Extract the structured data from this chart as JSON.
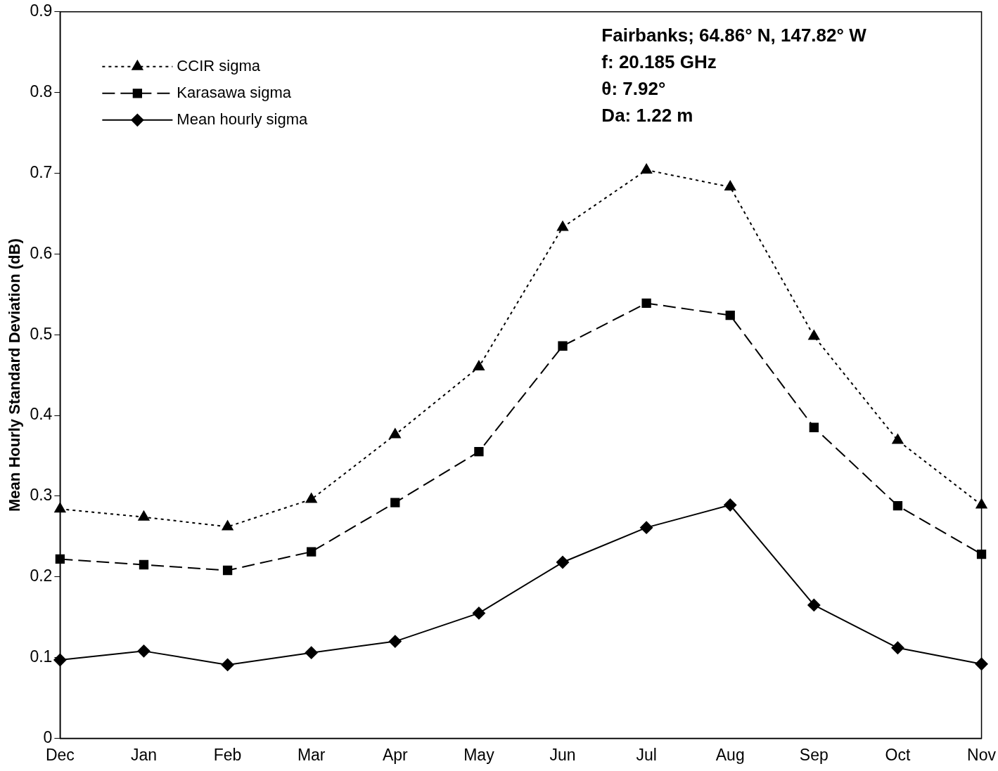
{
  "chart_data": {
    "type": "line",
    "ylabel": "Mean Hourly Standard Deviation (dB)",
    "categories": [
      "Dec",
      "Jan",
      "Feb",
      "Mar",
      "Apr",
      "May",
      "Jun",
      "Jul",
      "Aug",
      "Sep",
      "Oct",
      "Nov"
    ],
    "series": [
      {
        "name": "CCIR sigma",
        "color": "#000000",
        "marker": "triangle",
        "line_style": "dotted",
        "values": [
          0.284,
          0.274,
          0.262,
          0.296,
          0.376,
          0.46,
          0.633,
          0.704,
          0.683,
          0.498,
          0.369,
          0.289
        ]
      },
      {
        "name": "Karasawa sigma",
        "color": "#000000",
        "marker": "square",
        "line_style": "dashed",
        "values": [
          0.222,
          0.215,
          0.208,
          0.231,
          0.292,
          0.355,
          0.486,
          0.539,
          0.524,
          0.385,
          0.288,
          0.228
        ]
      },
      {
        "name": "Mean hourly sigma",
        "color": "#000000",
        "marker": "diamond",
        "line_style": "solid",
        "values": [
          0.097,
          0.108,
          0.091,
          0.106,
          0.12,
          0.155,
          0.218,
          0.261,
          0.289,
          0.165,
          0.112,
          0.092
        ]
      }
    ],
    "ylim": [
      0,
      0.9
    ],
    "yticks": [
      0,
      0.1,
      0.2,
      0.3,
      0.4,
      0.5,
      0.6,
      0.7,
      0.8,
      0.9
    ],
    "grid": false,
    "legend": "top left",
    "annotations": [
      "Fairbanks; 64.86° N, 147.82° W",
      "f: 20.185 GHz",
      "θ: 7.92°",
      "Da: 1.22 m"
    ]
  }
}
